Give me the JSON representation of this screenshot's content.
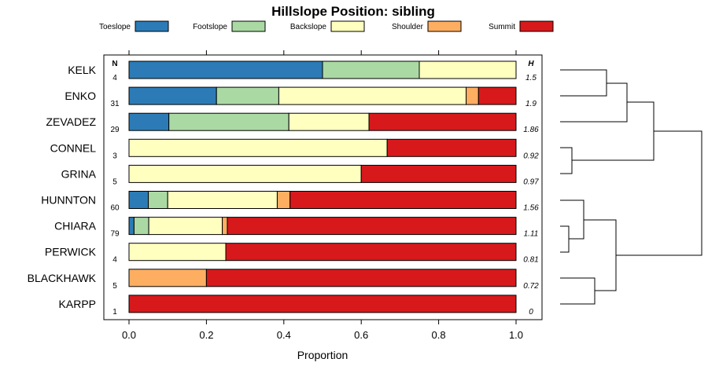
{
  "chart_data": {
    "type": "bar",
    "orientation": "horizontal-stacked",
    "title": "Hillslope Position: sibling",
    "xlabel": "Proportion",
    "xlim": [
      0,
      1
    ],
    "xticks": [
      0.0,
      0.2,
      0.4,
      0.6,
      0.8,
      1.0
    ],
    "xtick_labels": [
      "0.0",
      "0.2",
      "0.4",
      "0.6",
      "0.8",
      "1.0"
    ],
    "n_header": "N",
    "h_header": "H",
    "legend": [
      {
        "name": "Toeslope",
        "color": "#2C7BB6"
      },
      {
        "name": "Footslope",
        "color": "#ABD9A4"
      },
      {
        "name": "Backslope",
        "color": "#FFFFBF"
      },
      {
        "name": "Shoulder",
        "color": "#FDAE61"
      },
      {
        "name": "Summit",
        "color": "#D7191C"
      }
    ],
    "categories": [
      "KELK",
      "ENKO",
      "ZEVADEZ",
      "CONNEL",
      "GRINA",
      "HUNNTON",
      "CHIARA",
      "PERWICK",
      "BLACKHAWK",
      "KARPP"
    ],
    "n": [
      "4",
      "31",
      "29",
      "3",
      "5",
      "60",
      "79",
      "4",
      "5",
      "1"
    ],
    "h": [
      "1.5",
      "1.9",
      "1.86",
      "0.92",
      "0.97",
      "1.56",
      "1.11",
      "0.81",
      "0.72",
      "0"
    ],
    "series": [
      {
        "name": "Toeslope",
        "values": [
          0.5,
          0.226,
          0.103,
          0,
          0,
          0.05,
          0.013,
          0,
          0,
          0
        ]
      },
      {
        "name": "Footslope",
        "values": [
          0.25,
          0.161,
          0.31,
          0,
          0,
          0.05,
          0.038,
          0,
          0,
          0
        ]
      },
      {
        "name": "Backslope",
        "values": [
          0.25,
          0.484,
          0.207,
          0.667,
          0.6,
          0.283,
          0.19,
          0.25,
          0,
          0
        ]
      },
      {
        "name": "Shoulder",
        "values": [
          0,
          0.032,
          0,
          0,
          0,
          0.033,
          0.013,
          0,
          0.2,
          0
        ]
      },
      {
        "name": "Summit",
        "values": [
          0,
          0.097,
          0.38,
          0.333,
          0.4,
          0.584,
          0.746,
          0.75,
          0.8,
          1.0
        ]
      }
    ]
  }
}
